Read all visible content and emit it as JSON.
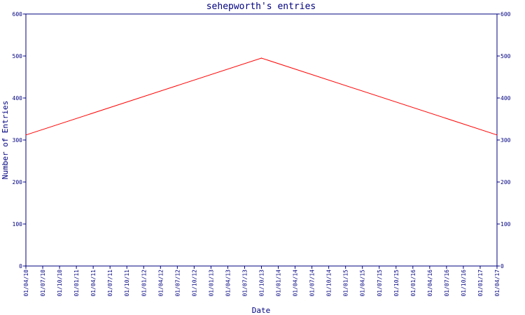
{
  "chart_data": {
    "type": "line",
    "title": "sehepworth's entries",
    "xlabel": "Date",
    "ylabel": "Number of Entries",
    "ylim": [
      0,
      600
    ],
    "y_ticks": [
      "0",
      "100",
      "200",
      "300",
      "400",
      "500",
      "600"
    ],
    "x_ticks": [
      "01/04/10",
      "01/07/10",
      "01/10/10",
      "01/01/11",
      "01/04/11",
      "01/07/11",
      "01/10/11",
      "01/01/12",
      "01/04/12",
      "01/07/12",
      "01/10/12",
      "01/01/13",
      "01/04/13",
      "01/07/13",
      "01/10/13",
      "01/01/14",
      "01/04/14",
      "01/07/14",
      "01/10/14",
      "01/01/15",
      "01/04/15",
      "01/07/15",
      "01/10/15",
      "01/01/16",
      "01/04/16",
      "01/07/16",
      "01/10/16",
      "01/01/17",
      "01/04/17"
    ],
    "grid": false,
    "right_axis": true,
    "series": [
      {
        "color": "#ff0000",
        "points": [
          {
            "x": "01/04/10",
            "y": 312
          },
          {
            "x": "01/10/13",
            "y": 495
          },
          {
            "x": "01/04/17",
            "y": 312
          }
        ]
      }
    ]
  },
  "colors": {
    "axis": "#000080",
    "line": "#ff0000",
    "background": "#ffffff"
  }
}
